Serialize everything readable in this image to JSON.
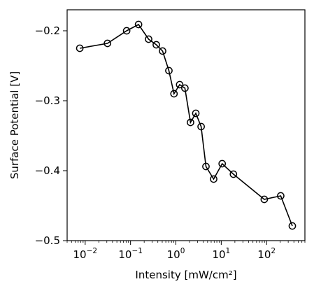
{
  "chart_data": {
    "type": "line",
    "title": "",
    "xlabel": "Intensity [mW/cm²]",
    "ylabel": "Surface Potential [V]",
    "xscale": "log",
    "xlim": [
      0.004,
      700
    ],
    "ylim": [
      -0.5,
      -0.17
    ],
    "grid": false,
    "legend": "none",
    "marker": "open-circle",
    "line_color": "#000000",
    "x_ticks": [
      {
        "value": 0.01,
        "mantissa": "10",
        "exponent": "−2"
      },
      {
        "value": 0.1,
        "mantissa": "10",
        "exponent": "−1"
      },
      {
        "value": 1,
        "mantissa": "10",
        "exponent": "0"
      },
      {
        "value": 10,
        "mantissa": "10",
        "exponent": "1"
      },
      {
        "value": 100,
        "mantissa": "10",
        "exponent": "2"
      }
    ],
    "y_ticks": [
      {
        "value": -0.2,
        "label": "−0.2"
      },
      {
        "value": -0.3,
        "label": "−0.3"
      },
      {
        "value": -0.4,
        "label": "−0.4"
      },
      {
        "value": -0.5,
        "label": "−0.5"
      }
    ],
    "series": [
      {
        "x": [
          0.0076,
          0.031,
          0.082,
          0.15,
          0.25,
          0.37,
          0.51,
          0.7,
          0.91,
          1.21,
          1.58,
          2.1,
          2.75,
          3.6,
          4.6,
          6.8,
          10.5,
          18.6,
          89,
          205,
          370
        ],
        "y": [
          -0.225,
          -0.218,
          -0.2,
          -0.191,
          -0.212,
          -0.22,
          -0.229,
          -0.257,
          -0.29,
          -0.277,
          -0.282,
          -0.331,
          -0.318,
          -0.337,
          -0.394,
          -0.412,
          -0.39,
          -0.405,
          -0.441,
          -0.436,
          -0.479
        ]
      }
    ]
  }
}
